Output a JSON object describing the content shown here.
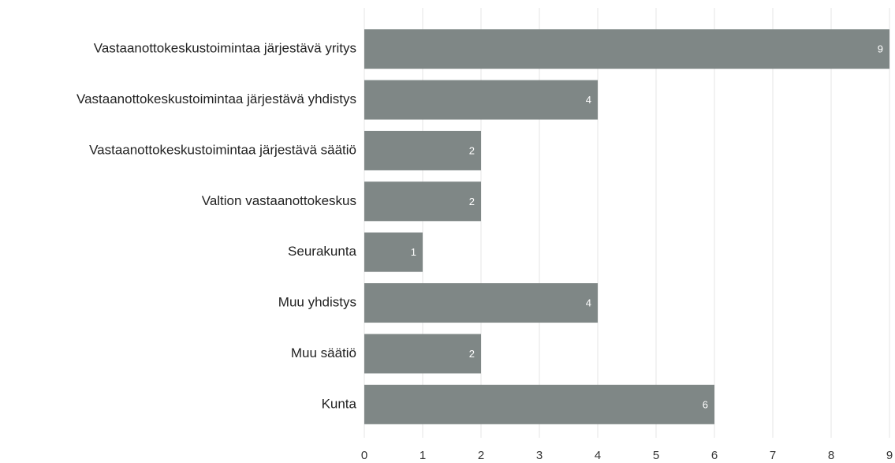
{
  "chart_data": {
    "type": "bar",
    "orientation": "horizontal",
    "categories": [
      "Vastaanottokeskustoimintaa järjestävä yritys",
      "Vastaanottokeskustoimintaa järjestävä yhdistys",
      "Vastaanottokeskustoimintaa järjestävä säätiö",
      "Valtion vastaanottokeskus",
      "Seurakunta",
      "Muu yhdistys",
      "Muu säätiö",
      "Kunta"
    ],
    "values": [
      9,
      4,
      2,
      2,
      1,
      4,
      2,
      6
    ],
    "color": "#7f8786",
    "xlim": [
      0,
      9
    ],
    "xticks": [
      0,
      1,
      2,
      3,
      4,
      5,
      6,
      7,
      8,
      9
    ],
    "grid": true
  }
}
